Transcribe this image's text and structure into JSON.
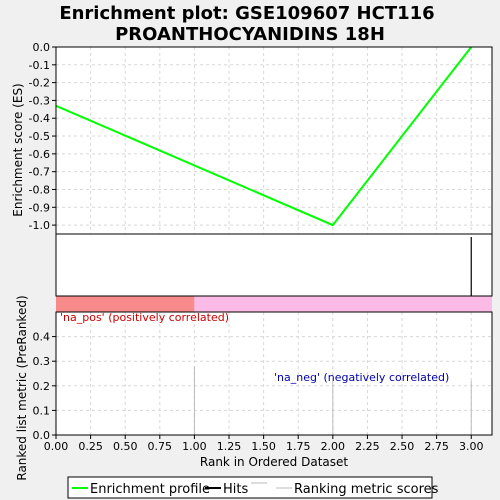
{
  "title_line1": "Enrichment plot: GSE109607 HCT116",
  "title_line2": "PROANTHOCYANIDINS 18H",
  "chart_data": {
    "type": "line",
    "title": "Enrichment plot: GSE109607 HCT116 PROANTHOCYANIDINS 18H",
    "xlabel": "Rank in Ordered Dataset",
    "xlim": [
      0,
      3.15
    ],
    "x_ticks": [
      "0.00",
      "0.25",
      "0.50",
      "0.75",
      "1.00",
      "1.25",
      "1.50",
      "1.75",
      "2.00",
      "2.25",
      "2.50",
      "2.75",
      "3.00"
    ],
    "es_panel": {
      "ylabel": "Enrichment score (ES)",
      "ylim": [
        -1.05,
        0.0
      ],
      "y_ticks": [
        "0.0",
        "-0.1",
        "-0.2",
        "-0.3",
        "-0.4",
        "-0.5",
        "-0.6",
        "-0.7",
        "-0.8",
        "-0.9",
        "-1.0"
      ],
      "series": [
        {
          "name": "Enrichment profile",
          "color": "#00ff00",
          "x": [
            0,
            2,
            3
          ],
          "y": [
            -0.33,
            -1.0,
            0.0
          ]
        }
      ],
      "grid": true
    },
    "hits": {
      "name": "Hits",
      "x": [
        3
      ],
      "color": "#000000"
    },
    "correlation_bar": {
      "pos_end": 1.0,
      "pos_color": "#f88a8a",
      "neg_color": "#fbbbe6"
    },
    "metric_panel": {
      "ylabel": "Ranked list metric (PreRanked)",
      "ylim": [
        0,
        0.5
      ],
      "y_ticks": [
        "0.0",
        "0.1",
        "0.2",
        "0.3",
        "0.4"
      ],
      "series": [
        {
          "name": "Ranking metric scores",
          "color": "#bbbbbb",
          "x": [
            1,
            2,
            3
          ],
          "y": [
            0.28,
            0.22,
            0.22
          ]
        }
      ],
      "grid": true
    },
    "annotations": {
      "pos": "'na_pos' (positively correlated)",
      "neg": "'na_neg' (negatively correlated)",
      "pos_color": "#cc0000",
      "neg_color": "#0000aa"
    },
    "legend": {
      "placement": "bottom",
      "entries": [
        {
          "label": "Enrichment profile",
          "color": "#00ff00"
        },
        {
          "label": "Hits",
          "color": "#000000"
        },
        {
          "label": "Ranking metric scores",
          "color": "#bbbbbb"
        }
      ]
    }
  }
}
